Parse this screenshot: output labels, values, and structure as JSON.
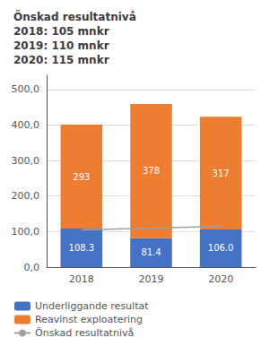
{
  "chart_data": {
    "type": "bar",
    "title": "Önskad resultatnivå\n2018: 105 mnkr\n2019: 110 mnkr\n2020: 115 mnkr",
    "categories": [
      "2018",
      "2019",
      "2020"
    ],
    "series": [
      {
        "name": "Underliggande resultat",
        "type": "bar",
        "color": "#4472C4",
        "values": [
          108.3,
          81.4,
          106.0
        ],
        "value_labels": [
          "108.3",
          "81.4",
          "106.0"
        ]
      },
      {
        "name": "Reavinst exploatering",
        "type": "bar",
        "color": "#ED7D31",
        "values": [
          293,
          378,
          317
        ]
      },
      {
        "name": "Önskad resultatnivå",
        "type": "line",
        "color": "#A0A0A0",
        "line_style": "solid",
        "marker": "none",
        "values": [
          105,
          110,
          115
        ]
      }
    ],
    "stacked": true,
    "data_labels": true,
    "ylim": [
      0,
      540
    ],
    "yticks": [
      {
        "value": 0,
        "label": "0,0"
      },
      {
        "value": 100,
        "label": "100,0"
      },
      {
        "value": 200,
        "label": "200,0"
      },
      {
        "value": 300,
        "label": "300,0"
      },
      {
        "value": 400,
        "label": "400,0"
      },
      {
        "value": 500,
        "label": "500,0"
      }
    ],
    "grid": true,
    "legend": "lower left"
  }
}
